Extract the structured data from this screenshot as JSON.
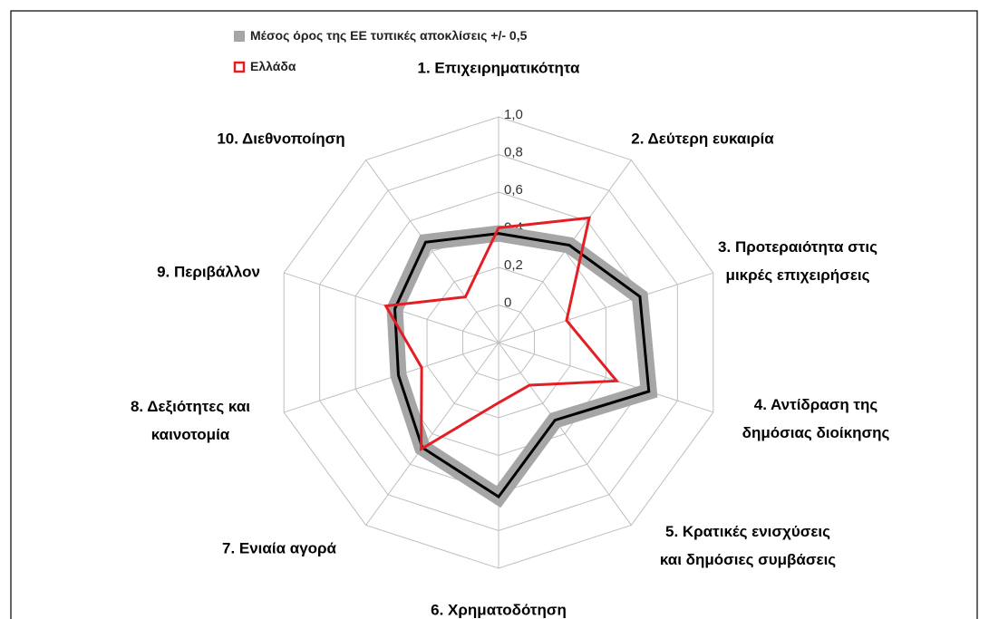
{
  "chart_data": {
    "type": "radar",
    "categories": [
      "1. Επιχειρηματικότητα",
      "2. Δεύτερη ευκαιρία",
      "3. Προτεραιότητα στις\nμικρές επιχειρήσεις",
      "4. Αντίδραση της\nδημόσιας διοίκησης",
      "5. Κρατικές ενισχύσεις\nκαι δημόσιες συμβάσεις",
      "6. Χρηματοδότηση",
      "7. Ενιαία αγορά",
      "8. Δεξιότητες και\nκαινοτομία",
      "9. Περιβάλλον",
      "10. Διεθνοποίηση"
    ],
    "series": [
      {
        "name": "Μέσος όρος της ΕΕ τυπικές αποκλίσεις +/- 0,5",
        "color": "#a6a6a6",
        "values": [
          0.38,
          0.44,
          0.59,
          0.64,
          0.31,
          0.62,
          0.49,
          0.36,
          0.38,
          0.46
        ]
      },
      {
        "name": "Ελλάδα",
        "color": "#e31e24",
        "values": [
          0.41,
          0.62,
          0.18,
          0.46,
          0.08,
          0.12,
          0.5,
          0.23,
          0.43,
          0.1
        ]
      }
    ],
    "ylim": [
      -0.2,
      1.0
    ],
    "yticks": [
      0,
      {
        "value": 0.2,
        "label": "0,2"
      },
      {
        "value": 0.4,
        "label": "0,4"
      },
      {
        "value": 0.6,
        "label": "0,6"
      },
      {
        "value": 0.8,
        "label": "0,8"
      },
      {
        "value": 1.0,
        "label": "1,0"
      }
    ],
    "grid": true
  }
}
